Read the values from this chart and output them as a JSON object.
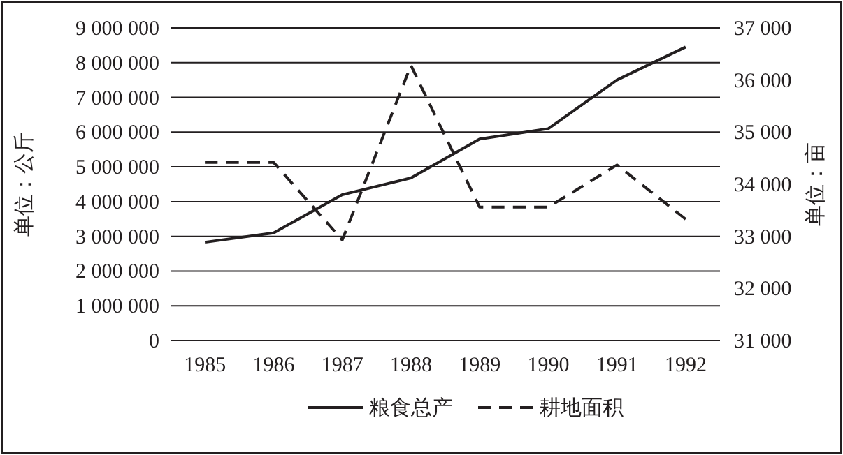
{
  "chart_data": {
    "type": "line",
    "ylabel": "单位：公斤",
    "y2label": "单位：亩",
    "categories": [
      "1985",
      "1986",
      "1987",
      "1988",
      "1989",
      "1990",
      "1991",
      "1992"
    ],
    "series": [
      {
        "name": "粮食总产",
        "color": "#231f20",
        "line_style": "solid",
        "values": [
          2830000,
          3100000,
          4200000,
          4680000,
          5800000,
          6100000,
          7500000,
          8450000
        ]
      },
      {
        "name": "耕地面积",
        "color": "#231f20",
        "line_style": "dashed",
        "axis": "y2",
        "values": [
          34420,
          34420,
          32930,
          36280,
          33560,
          33560,
          34370,
          33330
        ]
      }
    ],
    "ylim": [
      0,
      9000000
    ],
    "yticks": [
      {
        "value": 0,
        "label": "0"
      },
      {
        "value": 1000000,
        "label": "1 000 000"
      },
      {
        "value": 2000000,
        "label": "2 000 000"
      },
      {
        "value": 3000000,
        "label": "3 000 000"
      },
      {
        "value": 4000000,
        "label": "4 000 000"
      },
      {
        "value": 5000000,
        "label": "5 000 000"
      },
      {
        "value": 6000000,
        "label": "6 000 000"
      },
      {
        "value": 7000000,
        "label": "7 000 000"
      },
      {
        "value": 8000000,
        "label": "8 000 000"
      },
      {
        "value": 9000000,
        "label": "9 000 000"
      }
    ],
    "y2lim": [
      31000,
      37000
    ],
    "y2ticks": [
      {
        "value": 31000,
        "label": "31 000"
      },
      {
        "value": 32000,
        "label": "32 000"
      },
      {
        "value": 33000,
        "label": "33 000"
      },
      {
        "value": 34000,
        "label": "34 000"
      },
      {
        "value": 35000,
        "label": "35 000"
      },
      {
        "value": 36000,
        "label": "36 000"
      },
      {
        "value": 37000,
        "label": "37 000"
      }
    ],
    "grid": "y",
    "legend": "bottom"
  }
}
